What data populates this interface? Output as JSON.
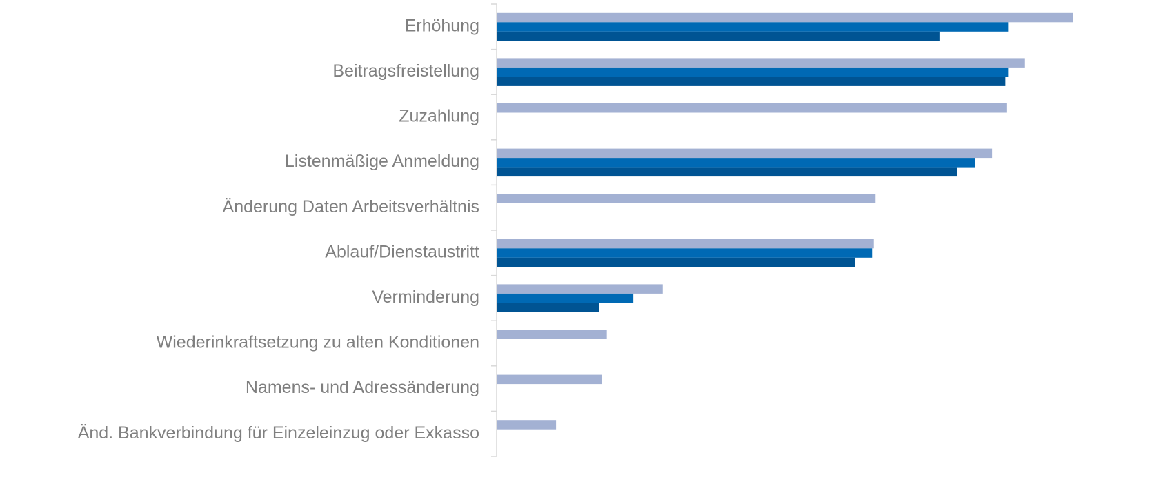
{
  "chart_data": {
    "type": "barh",
    "categories": [
      "Erhöhung",
      "Beitragsfreistellung",
      "Zuzahlung",
      "Listenmäßige Anmeldung",
      "Änderung Daten Arbeitsverhältnis",
      "Ablauf/Dienstaustritt",
      "Verminderung",
      "Wiederinkraftsetzung zu alten Konditionen",
      "Namens- und Adressänderung",
      "Änd. Bankverbindung für Einzeleinzug oder Exkasso"
    ],
    "series": [
      {
        "color": "#a3b1d3",
        "values": [
          100,
          91.6,
          88.5,
          85.9,
          65.7,
          65.4,
          28.8,
          19.1,
          18.3,
          10.3
        ]
      },
      {
        "color": "#0069b4",
        "values": [
          88.8,
          88.8,
          null,
          82.9,
          null,
          65.1,
          23.7,
          null,
          null,
          null
        ]
      },
      {
        "color": "#005493",
        "values": [
          76.9,
          88.2,
          null,
          79.9,
          null,
          62.2,
          17.8,
          null,
          null,
          null
        ]
      }
    ],
    "xlim": [
      0,
      100
    ]
  }
}
